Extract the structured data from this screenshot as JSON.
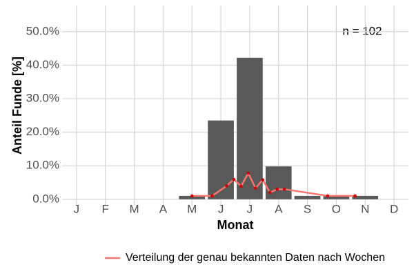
{
  "chart_data": {
    "type": "bar",
    "categories": [
      "J",
      "F",
      "M",
      "A",
      "M",
      "J",
      "J",
      "A",
      "S",
      "O",
      "N",
      "D"
    ],
    "values": [
      0,
      0,
      0,
      0,
      1.0,
      23.5,
      42.2,
      9.8,
      1.0,
      1.0,
      1.0,
      0
    ],
    "color": "#595959",
    "x_label": "Monat",
    "y_label": "Anteil Funde [%]",
    "annotation": "n = 102",
    "xlim": [
      0.5,
      12.5
    ],
    "ylim": [
      -1.9,
      57.8
    ],
    "yticks": [
      {
        "value": 0,
        "label": "0.0%"
      },
      {
        "value": 10,
        "label": "10.0%"
      },
      {
        "value": 20,
        "label": "20.0%"
      },
      {
        "value": 30,
        "label": "30.0%"
      },
      {
        "value": 40,
        "label": "40.0%"
      },
      {
        "value": 50,
        "label": "50.0%"
      }
    ],
    "grid": true,
    "legend": "bottom",
    "series": [
      {
        "name": "Verteilung der genau bekannten Daten nach Wochen",
        "color": "#f8766d",
        "point_color": "#cc0000",
        "x": [
          5.0,
          5.7,
          6.2,
          6.45,
          6.7,
          6.95,
          7.2,
          7.45,
          7.7,
          7.95,
          8.2,
          9.7,
          10.65
        ],
        "values": [
          1.0,
          1.0,
          4.0,
          5.9,
          3.9,
          7.8,
          3.3,
          5.8,
          2.0,
          3.0,
          3.0,
          1.0,
          1.0
        ]
      }
    ]
  }
}
